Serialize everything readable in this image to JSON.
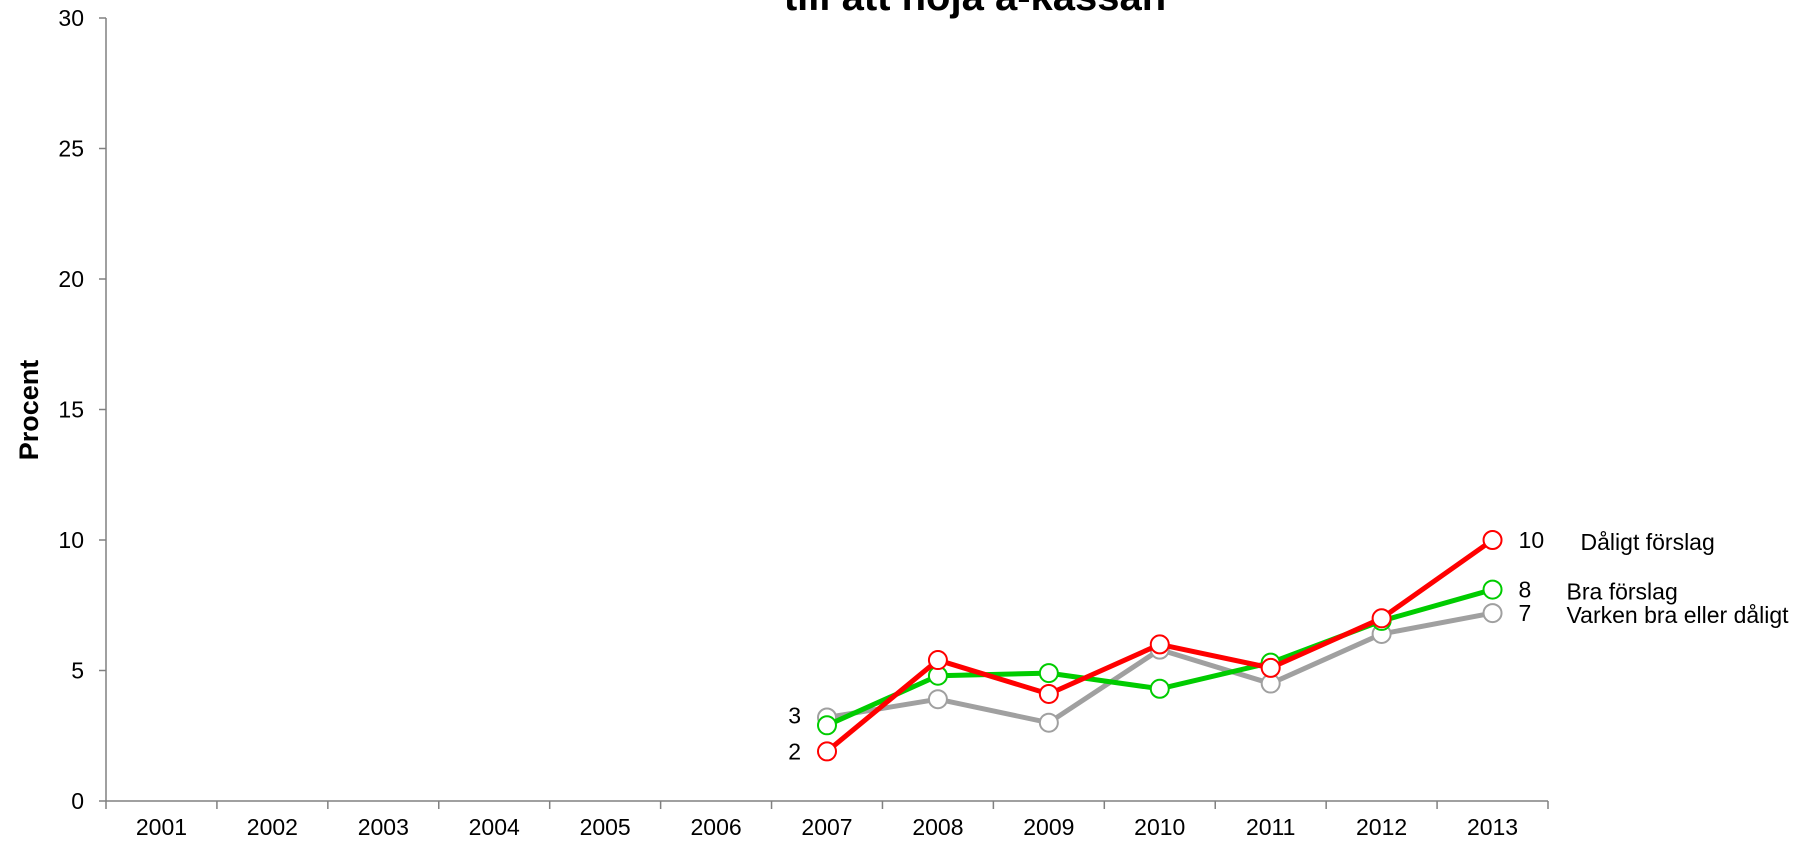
{
  "chart_data": {
    "type": "line",
    "title": "till att höja a-kassan",
    "y_label": "Procent",
    "categories": [
      "2001",
      "2002",
      "2003",
      "2004",
      "2005",
      "2006",
      "2007",
      "2008",
      "2009",
      "2010",
      "2011",
      "2012",
      "2013"
    ],
    "series": [
      {
        "name": "Varken bra eller dåligt",
        "color": "#a0a0a0",
        "values": [
          null,
          null,
          null,
          null,
          null,
          null,
          3.2,
          3.9,
          3.0,
          5.8,
          4.5,
          6.4,
          7.2
        ],
        "value_labels": [
          null,
          null,
          null,
          null,
          null,
          null,
          "3",
          null,
          null,
          null,
          null,
          null,
          "7"
        ]
      },
      {
        "name": "Bra förslag",
        "color": "#00cc00",
        "values": [
          null,
          null,
          null,
          null,
          null,
          null,
          2.9,
          4.8,
          4.9,
          4.3,
          5.3,
          6.9,
          8.1
        ],
        "value_labels": [
          null,
          null,
          null,
          null,
          null,
          null,
          null,
          null,
          null,
          null,
          null,
          null,
          "8"
        ]
      },
      {
        "name": "Dåligt förslag",
        "color": "#ff0000",
        "values": [
          null,
          null,
          null,
          null,
          null,
          null,
          1.9,
          5.4,
          4.1,
          6.0,
          5.1,
          7.0,
          10.0
        ],
        "value_labels": [
          null,
          null,
          null,
          null,
          null,
          null,
          "2",
          null,
          null,
          null,
          null,
          null,
          "10"
        ]
      }
    ],
    "ylim": [
      0,
      30
    ],
    "yticks": [
      0,
      5,
      10,
      15,
      20,
      25,
      30
    ],
    "grid": false
  }
}
